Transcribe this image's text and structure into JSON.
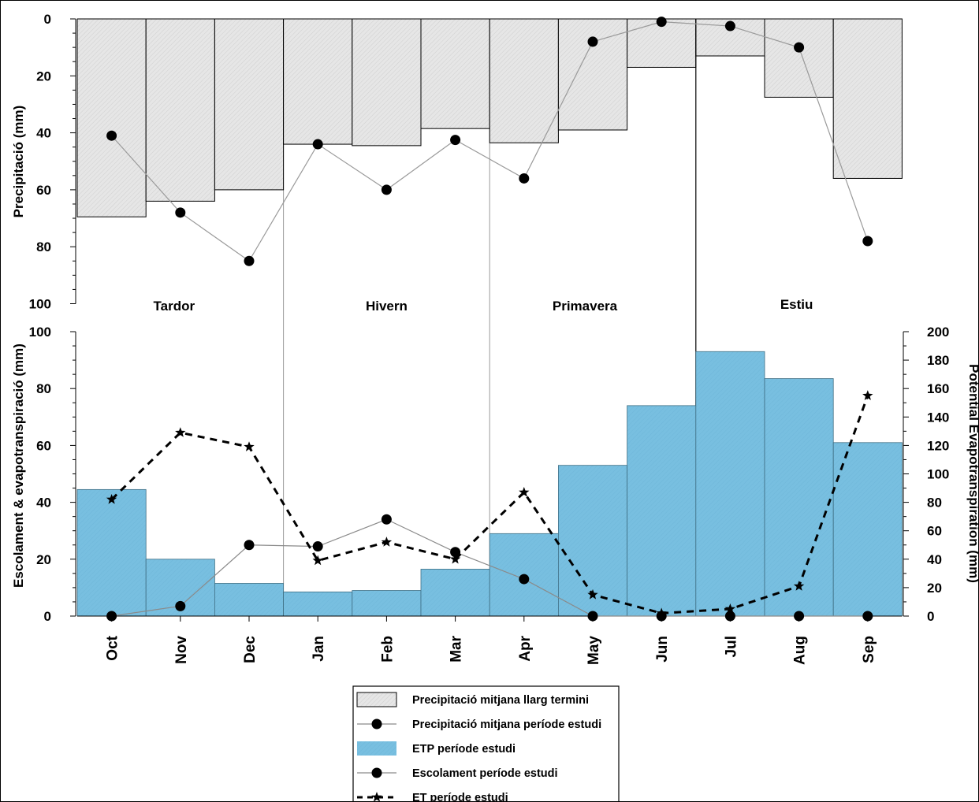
{
  "chart_data": {
    "type": "bar",
    "categories": [
      "Oct",
      "Nov",
      "Dec",
      "Jan",
      "Feb",
      "Mar",
      "Apr",
      "May",
      "Jun",
      "Jul",
      "Aug",
      "Sep"
    ],
    "seasons": [
      "Tardor",
      "Hivern",
      "Primavera",
      "Estiu"
    ],
    "top_panel": {
      "ylabel": "Precipitació (mm)",
      "ylim": [
        0,
        100
      ],
      "inverted": true,
      "yticks": [
        0,
        20,
        40,
        60,
        80,
        100
      ],
      "series": [
        {
          "name": "Precipitació mitjana llarg termini",
          "kind": "bar",
          "color": "#e6e6e6",
          "values": [
            69.5,
            64,
            60,
            44,
            44.5,
            38.5,
            43.5,
            39,
            17,
            13,
            27.5,
            56
          ]
        },
        {
          "name": "Precipitació mitjana període estudi",
          "kind": "line-circle",
          "color": "#000000",
          "values": [
            41,
            68,
            85,
            44,
            60,
            42.5,
            56,
            8,
            1,
            2.5,
            10,
            78
          ]
        }
      ]
    },
    "bottom_panel": {
      "ylabel": "Escolament & evapotranspiració (mm)",
      "ylim": [
        0,
        100
      ],
      "yticks": [
        0,
        20,
        40,
        60,
        80,
        100
      ],
      "y2label": "Potential Evapotranspiration (mm)",
      "y2lim": [
        0,
        200
      ],
      "y2ticks": [
        0,
        20,
        40,
        60,
        80,
        100,
        120,
        140,
        160,
        180,
        200
      ],
      "series": [
        {
          "name": "ETP període estudi",
          "kind": "bar",
          "axis": "right",
          "color": "#7ac1e1",
          "values": [
            89,
            40,
            23,
            17,
            18,
            33,
            58,
            106,
            148,
            186,
            167,
            122
          ]
        },
        {
          "name": "Escolament període estudi",
          "kind": "line-circle",
          "axis": "left",
          "color": "#000000",
          "values": [
            0,
            3.5,
            25,
            24.5,
            34,
            22.5,
            13,
            0,
            0,
            0,
            0,
            0
          ]
        },
        {
          "name": "ET període estudi",
          "kind": "line-star-dashed",
          "axis": "left",
          "color": "#000000",
          "values": [
            41,
            64.5,
            59.5,
            19.5,
            26,
            20,
            43.5,
            7.5,
            1,
            2.5,
            10.5,
            77.5
          ]
        }
      ]
    },
    "legend_position": "bottom-center"
  }
}
